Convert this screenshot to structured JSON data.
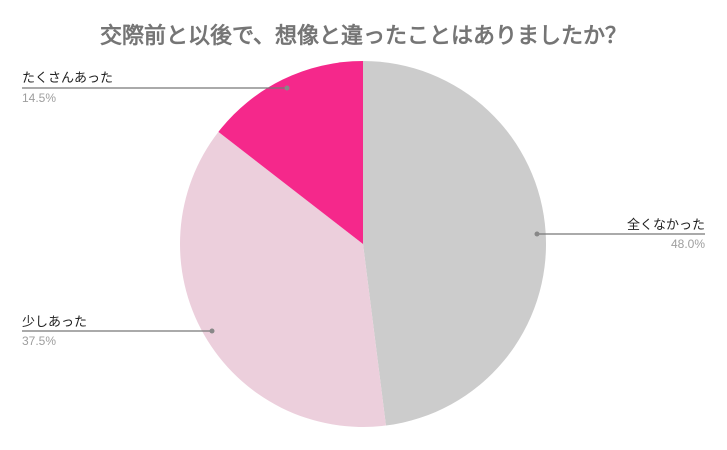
{
  "chart_data": {
    "type": "pie",
    "title": "交際前と以後で、想像と違ったことはありましたか？",
    "start": "top",
    "direction": "clockwise",
    "slices": [
      {
        "label": "全くなかった",
        "value": 48.0,
        "display": "48.0%",
        "color": "#cccccc"
      },
      {
        "label": "少しあった",
        "value": 37.5,
        "display": "37.5%",
        "color": "#eccfdc"
      },
      {
        "label": "たくさんあった",
        "value": 14.5,
        "display": "14.5%",
        "color": "#f5288b"
      }
    ],
    "legend": "none"
  }
}
